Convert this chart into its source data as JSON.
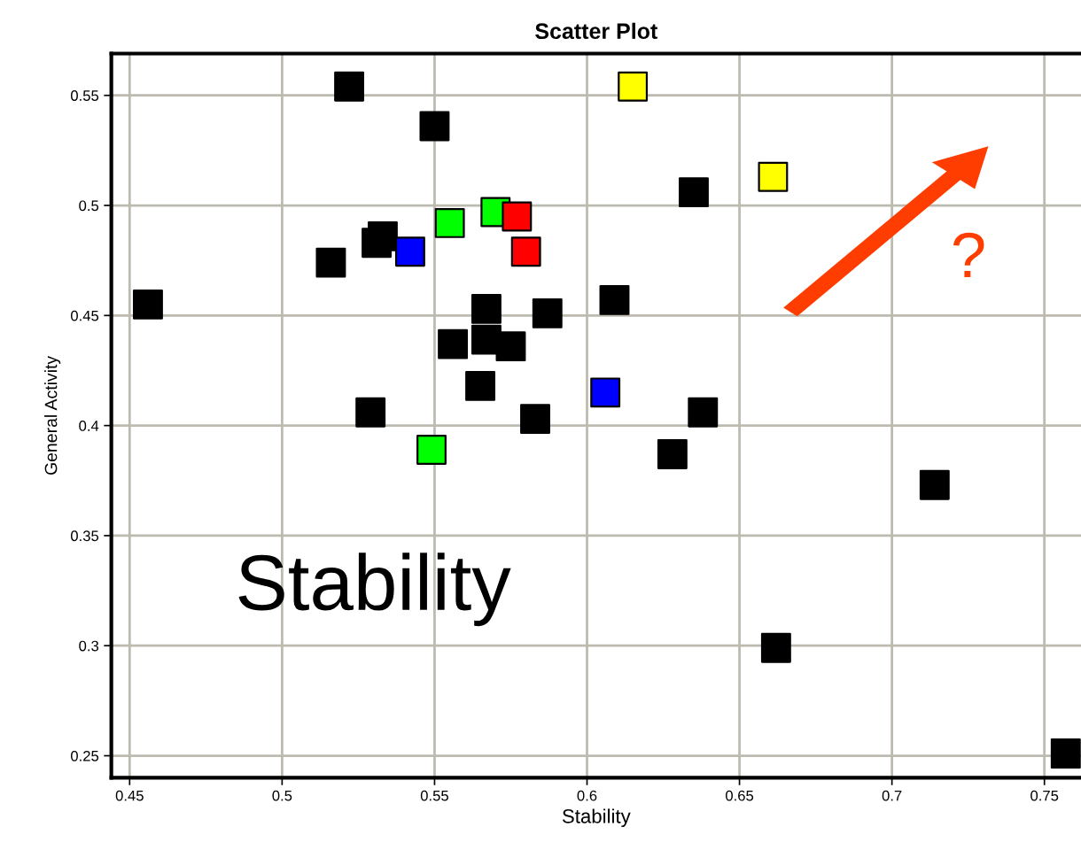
{
  "chart_data": {
    "type": "scatter",
    "title": "Scatter Plot",
    "xlabel": "Stability",
    "ylabel": "General Activity",
    "xlim": [
      0.444,
      0.762
    ],
    "ylim": [
      0.24,
      0.569
    ],
    "xticks": [
      0.45,
      0.5,
      0.55,
      0.6,
      0.65,
      0.7,
      0.75
    ],
    "yticks": [
      0.25,
      0.3,
      0.35,
      0.4,
      0.45,
      0.5,
      0.55
    ],
    "grid": true,
    "marker": "square",
    "legend": false,
    "series": [
      {
        "color": "#000000",
        "x": [
          0.522,
          0.55,
          0.635,
          0.533,
          0.531,
          0.516,
          0.456,
          0.609,
          0.567,
          0.587,
          0.556,
          0.567,
          0.575,
          0.565,
          0.529,
          0.583,
          0.638,
          0.628,
          0.714,
          0.662,
          0.757
        ],
        "values": [
          0.554,
          0.536,
          0.506,
          0.486,
          0.483,
          0.474,
          0.455,
          0.457,
          0.453,
          0.451,
          0.437,
          0.439,
          0.436,
          0.418,
          0.406,
          0.403,
          0.406,
          0.387,
          0.373,
          0.299,
          0.251
        ]
      },
      {
        "color": "#00ff00",
        "x": [
          0.555,
          0.57,
          0.549
        ],
        "values": [
          0.492,
          0.497,
          0.389
        ]
      },
      {
        "color": "#ff0000",
        "x": [
          0.577,
          0.58
        ],
        "values": [
          0.495,
          0.479
        ]
      },
      {
        "color": "#0000ff",
        "x": [
          0.542,
          0.606
        ],
        "values": [
          0.479,
          0.415
        ]
      },
      {
        "color": "#ffff00",
        "x": [
          0.615,
          0.661
        ],
        "values": [
          0.554,
          0.513
        ]
      }
    ],
    "annotations": [
      "Stability",
      "?"
    ]
  }
}
